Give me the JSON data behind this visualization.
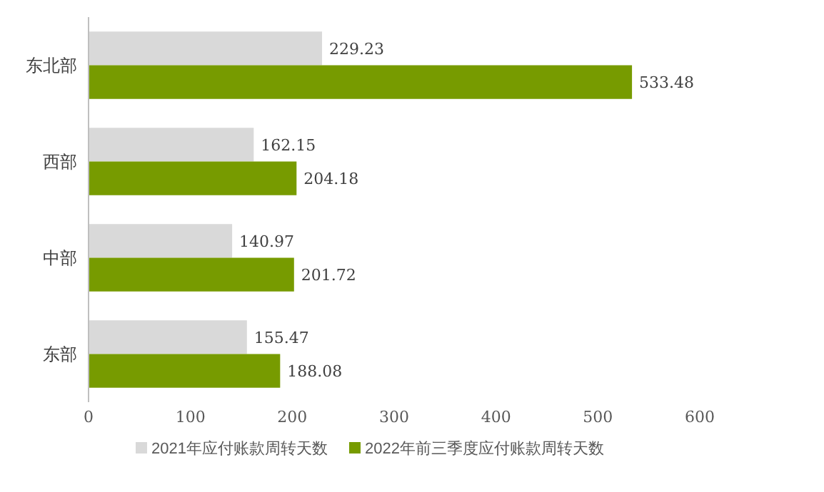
{
  "chart_data": {
    "type": "bar",
    "orientation": "horizontal",
    "categories": [
      "东北部",
      "西部",
      "中部",
      "东部"
    ],
    "series": [
      {
        "name": "2021年应付账款周转天数",
        "color": "#d9d9d9",
        "values": [
          229.23,
          162.15,
          140.97,
          155.47
        ]
      },
      {
        "name": "2022年前三季度应付账款周转天数",
        "color": "#779b00",
        "values": [
          533.48,
          204.18,
          201.72,
          188.08
        ]
      }
    ],
    "xlim": [
      0,
      600
    ],
    "xticks": [
      0,
      100,
      200,
      300,
      400,
      500,
      600
    ],
    "data_labels": true,
    "legend": "bottom",
    "grid": false
  }
}
